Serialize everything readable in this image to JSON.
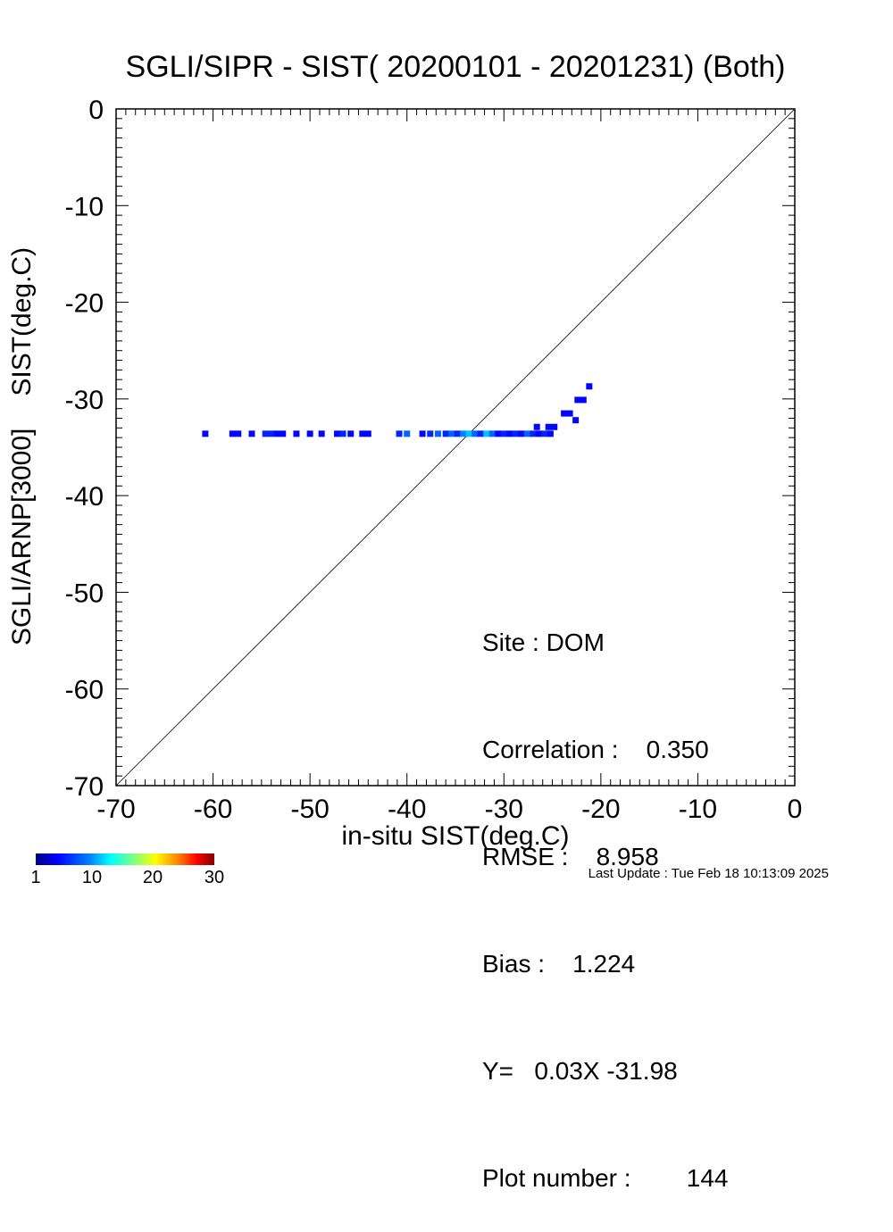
{
  "chart_data": {
    "type": "scatter",
    "title": "SGLI/SIPR - SIST( 20200101 - 20201231) (Both)",
    "xlabel": "in-situ SIST(deg.C)",
    "ylabel_parts": [
      "SGLI/ARNP[3000]",
      "SIST(deg.C)"
    ],
    "xlim": [
      -70,
      0
    ],
    "ylim": [
      -70,
      0
    ],
    "x_ticks": [
      "-70",
      "-60",
      "-50",
      "-40",
      "-30",
      "-20",
      "-10",
      "0"
    ],
    "y_ticks": [
      "0",
      "-10",
      "-20",
      "-30",
      "-40",
      "-50",
      "-60",
      "-70"
    ],
    "one_to_one_line": true,
    "grid": false,
    "points": [
      {
        "x": -60.8,
        "y": -33.6,
        "c": 2
      },
      {
        "x": -58.0,
        "y": -33.6,
        "c": 2
      },
      {
        "x": -57.4,
        "y": -33.6,
        "c": 2
      },
      {
        "x": -56.0,
        "y": -33.6,
        "c": 2
      },
      {
        "x": -54.6,
        "y": -33.6,
        "c": 3
      },
      {
        "x": -54.0,
        "y": -33.6,
        "c": 3
      },
      {
        "x": -53.4,
        "y": -33.6,
        "c": 2
      },
      {
        "x": -52.8,
        "y": -33.6,
        "c": 2
      },
      {
        "x": -51.4,
        "y": -33.6,
        "c": 2
      },
      {
        "x": -50.0,
        "y": -33.6,
        "c": 2
      },
      {
        "x": -48.8,
        "y": -33.6,
        "c": 2
      },
      {
        "x": -47.2,
        "y": -33.6,
        "c": 2
      },
      {
        "x": -46.6,
        "y": -33.6,
        "c": 3
      },
      {
        "x": -45.8,
        "y": -33.6,
        "c": 2
      },
      {
        "x": -44.6,
        "y": -33.6,
        "c": 2
      },
      {
        "x": -44.0,
        "y": -33.6,
        "c": 2
      },
      {
        "x": -40.8,
        "y": -33.6,
        "c": 3
      },
      {
        "x": -40.0,
        "y": -33.6,
        "c": 5
      },
      {
        "x": -38.4,
        "y": -33.6,
        "c": 2
      },
      {
        "x": -37.6,
        "y": -33.6,
        "c": 3
      },
      {
        "x": -36.8,
        "y": -33.6,
        "c": 5
      },
      {
        "x": -36.0,
        "y": -33.6,
        "c": 3
      },
      {
        "x": -35.4,
        "y": -33.6,
        "c": 5
      },
      {
        "x": -34.8,
        "y": -33.6,
        "c": 3
      },
      {
        "x": -34.2,
        "y": -33.6,
        "c": 6
      },
      {
        "x": -33.6,
        "y": -33.6,
        "c": 8
      },
      {
        "x": -33.0,
        "y": -33.6,
        "c": 5
      },
      {
        "x": -32.4,
        "y": -33.6,
        "c": 3
      },
      {
        "x": -31.8,
        "y": -33.6,
        "c": 8
      },
      {
        "x": -31.2,
        "y": -33.6,
        "c": 5
      },
      {
        "x": -30.6,
        "y": -33.6,
        "c": 2
      },
      {
        "x": -30.0,
        "y": -33.6,
        "c": 3
      },
      {
        "x": -29.4,
        "y": -33.6,
        "c": 2
      },
      {
        "x": -28.8,
        "y": -33.6,
        "c": 3
      },
      {
        "x": -28.2,
        "y": -33.6,
        "c": 2
      },
      {
        "x": -27.6,
        "y": -33.6,
        "c": 5
      },
      {
        "x": -27.0,
        "y": -33.6,
        "c": 3
      },
      {
        "x": -26.4,
        "y": -33.6,
        "c": 2
      },
      {
        "x": -25.8,
        "y": -33.6,
        "c": 3
      },
      {
        "x": -25.2,
        "y": -33.6,
        "c": 2
      },
      {
        "x": -26.6,
        "y": -32.9,
        "c": 2
      },
      {
        "x": -25.4,
        "y": -32.9,
        "c": 2
      },
      {
        "x": -24.8,
        "y": -32.9,
        "c": 2
      },
      {
        "x": -23.8,
        "y": -31.5,
        "c": 2
      },
      {
        "x": -23.2,
        "y": -31.5,
        "c": 2
      },
      {
        "x": -22.6,
        "y": -32.2,
        "c": 2
      },
      {
        "x": -22.4,
        "y": -30.1,
        "c": 2
      },
      {
        "x": -21.8,
        "y": -30.1,
        "c": 2
      },
      {
        "x": -21.2,
        "y": -28.7,
        "c": 2
      }
    ],
    "colorbar": {
      "min": 1,
      "max": 30,
      "ticks": [
        "1",
        "10",
        "20",
        "30"
      ]
    }
  },
  "stats": {
    "site": "Site : DOM",
    "correlation": "Correlation :    0.350",
    "rmse": "RMSE :    8.958",
    "bias": "Bias :    1.224",
    "fit": "Y=   0.03X -31.98",
    "plot_number": "Plot number :        144"
  },
  "last_update": "Last Update : Tue Feb 18 10:13:09 2025"
}
